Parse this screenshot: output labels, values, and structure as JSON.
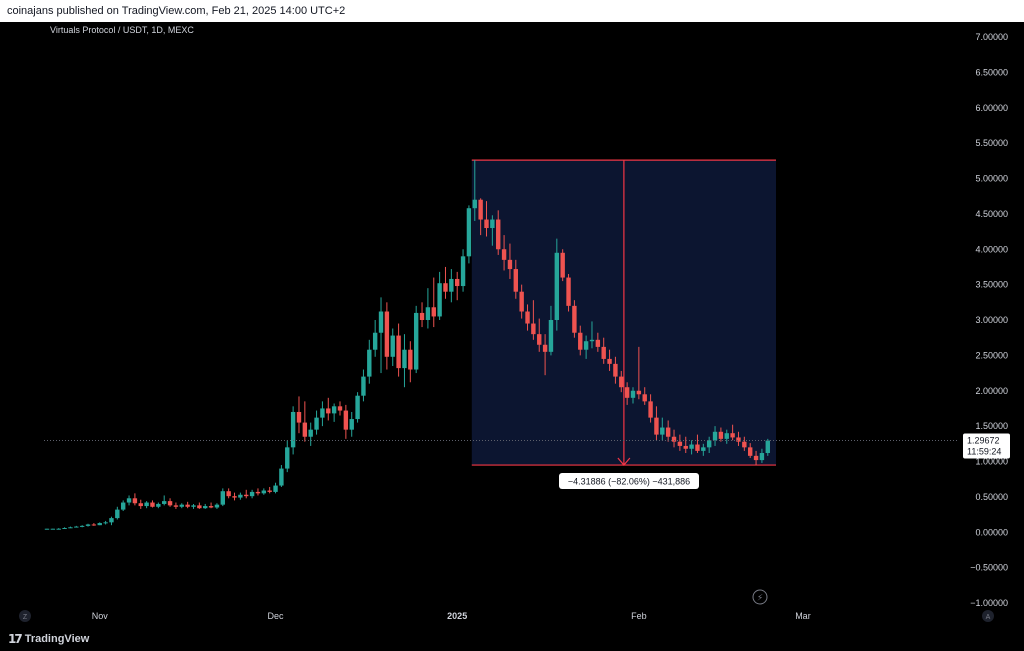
{
  "header": {
    "published_text": "coinajans published on TradingView.com, Feb 21, 2025 14:00 UTC+2"
  },
  "footer": {
    "brand": "TradingView",
    "brand_mark": "17"
  },
  "chart": {
    "symbol_title": "Virtuals Protocol / USDT, 1D, MEXC",
    "current_price": "1.29672",
    "countdown": "11:59:24",
    "measure_label": "−4.31886 (−82.06%) −431,886",
    "y_ticks": [
      "7.00000",
      "6.50000",
      "6.00000",
      "5.50000",
      "5.00000",
      "4.50000",
      "4.00000",
      "3.50000",
      "3.00000",
      "2.50000",
      "2.00000",
      "1.50000",
      "1.00000",
      "0.50000",
      "0.00000",
      "−0.50000",
      "−1.00000"
    ],
    "x_ticks": [
      {
        "label": "Nov",
        "bold": false,
        "day": 9
      },
      {
        "label": "Dec",
        "bold": false,
        "day": 39
      },
      {
        "label": "2025",
        "bold": true,
        "day": 70
      },
      {
        "label": "Feb",
        "bold": false,
        "day": 101
      },
      {
        "label": "Mar",
        "bold": false,
        "day": 129
      }
    ],
    "corner_left": "Z",
    "corner_right": "A",
    "bolt_icon": "⚡",
    "colors": {
      "up": "#26a69a",
      "down": "#ef5350",
      "measure_line": "#f23645",
      "measure_fill": "#0c1530",
      "price_label_bg": "#ffffff"
    }
  },
  "chart_data": {
    "type": "candlestick",
    "title": "Virtuals Protocol / USDT, 1D, MEXC",
    "ylim": [
      -1.0,
      7.0
    ],
    "x_axis_labels": [
      "Nov",
      "Dec",
      "2025",
      "Feb",
      "Mar"
    ],
    "measure": {
      "from_price": 5.26,
      "to_price": 0.95,
      "change": "−4.31886 (−82.06%) −431,886"
    },
    "last_price": 1.29672,
    "ohlc": [
      [
        0.04,
        0.05,
        0.04,
        0.05
      ],
      [
        0.05,
        0.05,
        0.04,
        0.05
      ],
      [
        0.05,
        0.06,
        0.05,
        0.05
      ],
      [
        0.05,
        0.07,
        0.05,
        0.06
      ],
      [
        0.06,
        0.08,
        0.06,
        0.07
      ],
      [
        0.07,
        0.09,
        0.07,
        0.08
      ],
      [
        0.08,
        0.1,
        0.07,
        0.09
      ],
      [
        0.09,
        0.12,
        0.08,
        0.11
      ],
      [
        0.11,
        0.13,
        0.09,
        0.1
      ],
      [
        0.1,
        0.14,
        0.1,
        0.13
      ],
      [
        0.13,
        0.16,
        0.11,
        0.14
      ],
      [
        0.14,
        0.22,
        0.1,
        0.2
      ],
      [
        0.2,
        0.36,
        0.18,
        0.32
      ],
      [
        0.32,
        0.45,
        0.3,
        0.42
      ],
      [
        0.42,
        0.52,
        0.38,
        0.48
      ],
      [
        0.48,
        0.55,
        0.38,
        0.41
      ],
      [
        0.41,
        0.46,
        0.33,
        0.37
      ],
      [
        0.37,
        0.44,
        0.34,
        0.42
      ],
      [
        0.42,
        0.45,
        0.35,
        0.36
      ],
      [
        0.36,
        0.42,
        0.34,
        0.4
      ],
      [
        0.4,
        0.52,
        0.38,
        0.44
      ],
      [
        0.44,
        0.48,
        0.36,
        0.38
      ],
      [
        0.38,
        0.42,
        0.33,
        0.36
      ],
      [
        0.36,
        0.41,
        0.34,
        0.39
      ],
      [
        0.39,
        0.43,
        0.34,
        0.36
      ],
      [
        0.36,
        0.4,
        0.33,
        0.38
      ],
      [
        0.38,
        0.42,
        0.33,
        0.34
      ],
      [
        0.34,
        0.4,
        0.33,
        0.37
      ],
      [
        0.37,
        0.42,
        0.34,
        0.35
      ],
      [
        0.35,
        0.41,
        0.33,
        0.39
      ],
      [
        0.39,
        0.62,
        0.37,
        0.58
      ],
      [
        0.58,
        0.62,
        0.48,
        0.51
      ],
      [
        0.51,
        0.56,
        0.45,
        0.49
      ],
      [
        0.49,
        0.56,
        0.46,
        0.53
      ],
      [
        0.53,
        0.6,
        0.48,
        0.51
      ],
      [
        0.51,
        0.6,
        0.48,
        0.57
      ],
      [
        0.57,
        0.62,
        0.52,
        0.55
      ],
      [
        0.55,
        0.62,
        0.53,
        0.59
      ],
      [
        0.59,
        0.64,
        0.55,
        0.57
      ],
      [
        0.57,
        0.7,
        0.55,
        0.66
      ],
      [
        0.66,
        0.95,
        0.64,
        0.9
      ],
      [
        0.9,
        1.3,
        0.85,
        1.2
      ],
      [
        1.2,
        1.78,
        1.1,
        1.7
      ],
      [
        1.7,
        1.92,
        1.4,
        1.55
      ],
      [
        1.55,
        1.85,
        1.28,
        1.35
      ],
      [
        1.35,
        1.55,
        1.22,
        1.45
      ],
      [
        1.45,
        1.72,
        1.38,
        1.62
      ],
      [
        1.62,
        1.85,
        1.5,
        1.75
      ],
      [
        1.75,
        1.9,
        1.58,
        1.68
      ],
      [
        1.68,
        1.82,
        1.56,
        1.78
      ],
      [
        1.78,
        1.85,
        1.65,
        1.72
      ],
      [
        1.72,
        1.8,
        1.32,
        1.45
      ],
      [
        1.45,
        1.7,
        1.35,
        1.6
      ],
      [
        1.6,
        1.98,
        1.55,
        1.93
      ],
      [
        1.93,
        2.3,
        1.85,
        2.2
      ],
      [
        2.2,
        2.72,
        2.1,
        2.58
      ],
      [
        2.58,
        3.0,
        2.48,
        2.82
      ],
      [
        2.82,
        3.32,
        2.25,
        3.12
      ],
      [
        3.12,
        3.25,
        2.3,
        2.48
      ],
      [
        2.48,
        2.88,
        2.35,
        2.78
      ],
      [
        2.78,
        2.95,
        2.2,
        2.32
      ],
      [
        2.32,
        2.8,
        2.05,
        2.58
      ],
      [
        2.58,
        2.7,
        2.12,
        2.3
      ],
      [
        2.3,
        3.2,
        2.25,
        3.1
      ],
      [
        3.1,
        3.25,
        2.9,
        3.0
      ],
      [
        3.0,
        3.45,
        2.88,
        3.18
      ],
      [
        3.18,
        3.6,
        2.9,
        3.05
      ],
      [
        3.05,
        3.68,
        3.0,
        3.52
      ],
      [
        3.52,
        3.75,
        3.3,
        3.4
      ],
      [
        3.4,
        3.72,
        3.25,
        3.58
      ],
      [
        3.58,
        3.68,
        3.28,
        3.48
      ],
      [
        3.48,
        4.0,
        3.4,
        3.9
      ],
      [
        3.9,
        4.62,
        3.8,
        4.58
      ],
      [
        4.58,
        5.26,
        4.4,
        4.7
      ],
      [
        4.7,
        4.72,
        4.2,
        4.42
      ],
      [
        4.42,
        4.68,
        4.18,
        4.3
      ],
      [
        4.3,
        4.48,
        4.05,
        4.42
      ],
      [
        4.42,
        4.55,
        3.92,
        4.0
      ],
      [
        4.0,
        4.2,
        3.7,
        3.85
      ],
      [
        3.85,
        4.08,
        3.58,
        3.72
      ],
      [
        3.72,
        3.85,
        3.3,
        3.4
      ],
      [
        3.4,
        3.5,
        3.02,
        3.12
      ],
      [
        3.12,
        3.22,
        2.85,
        2.95
      ],
      [
        2.95,
        3.28,
        2.72,
        2.8
      ],
      [
        2.8,
        3.02,
        2.55,
        2.65
      ],
      [
        2.65,
        2.8,
        2.22,
        2.55
      ],
      [
        2.55,
        3.2,
        2.5,
        3.0
      ],
      [
        3.0,
        4.15,
        2.85,
        3.95
      ],
      [
        3.95,
        4.0,
        3.55,
        3.6
      ],
      [
        3.6,
        3.65,
        3.12,
        3.2
      ],
      [
        3.2,
        3.28,
        2.75,
        2.82
      ],
      [
        2.82,
        2.92,
        2.5,
        2.58
      ],
      [
        2.58,
        2.78,
        2.45,
        2.7
      ],
      [
        2.7,
        2.98,
        2.6,
        2.72
      ],
      [
        2.72,
        2.82,
        2.55,
        2.62
      ],
      [
        2.62,
        2.75,
        2.38,
        2.45
      ],
      [
        2.45,
        2.58,
        2.28,
        2.38
      ],
      [
        2.38,
        2.48,
        2.1,
        2.2
      ],
      [
        2.2,
        2.28,
        1.98,
        2.05
      ],
      [
        2.05,
        2.12,
        1.8,
        1.9
      ],
      [
        1.9,
        2.05,
        1.82,
        2.0
      ],
      [
        2.0,
        2.62,
        1.88,
        1.95
      ],
      [
        1.95,
        2.05,
        1.8,
        1.85
      ],
      [
        1.85,
        1.95,
        1.55,
        1.62
      ],
      [
        1.62,
        1.78,
        1.3,
        1.38
      ],
      [
        1.38,
        1.62,
        1.3,
        1.48
      ],
      [
        1.48,
        1.58,
        1.28,
        1.35
      ],
      [
        1.35,
        1.45,
        1.2,
        1.28
      ],
      [
        1.28,
        1.38,
        1.15,
        1.22
      ],
      [
        1.22,
        1.35,
        1.12,
        1.18
      ],
      [
        1.18,
        1.3,
        1.1,
        1.24
      ],
      [
        1.24,
        1.38,
        1.12,
        1.15
      ],
      [
        1.15,
        1.25,
        1.08,
        1.2
      ],
      [
        1.2,
        1.35,
        1.12,
        1.3
      ],
      [
        1.3,
        1.5,
        1.22,
        1.42
      ],
      [
        1.42,
        1.48,
        1.28,
        1.32
      ],
      [
        1.32,
        1.45,
        1.25,
        1.4
      ],
      [
        1.4,
        1.52,
        1.3,
        1.34
      ],
      [
        1.34,
        1.42,
        1.22,
        1.28
      ],
      [
        1.28,
        1.35,
        1.15,
        1.2
      ],
      [
        1.2,
        1.26,
        1.05,
        1.08
      ],
      [
        1.08,
        1.15,
        0.95,
        1.02
      ],
      [
        1.02,
        1.18,
        0.98,
        1.12
      ],
      [
        1.12,
        1.32,
        1.08,
        1.29672
      ]
    ]
  }
}
